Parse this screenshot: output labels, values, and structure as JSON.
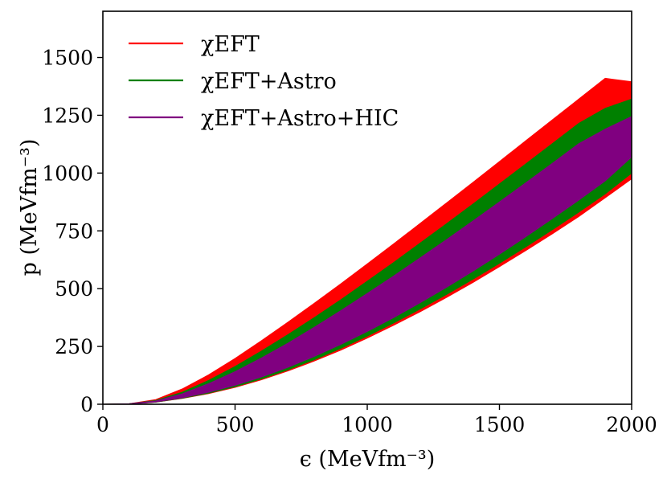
{
  "chart_data": {
    "type": "area",
    "title": "",
    "xlabel": "ϵ (MeVfm⁻³)",
    "ylabel": "p (MeVfm⁻³)",
    "xlim": [
      0,
      2000
    ],
    "ylim": [
      0,
      1700
    ],
    "xticks": [
      0,
      500,
      1000,
      1500,
      2000
    ],
    "yticks": [
      0,
      250,
      500,
      750,
      1000,
      1250,
      1500
    ],
    "xtick_labels": [
      "0",
      "500",
      "1000",
      "1500",
      "2000"
    ],
    "ytick_labels": [
      "0",
      "250",
      "500",
      "750",
      "1000",
      "1250",
      "1500"
    ],
    "grid": false,
    "legend_position": "top-left",
    "x": [
      0,
      100,
      200,
      300,
      400,
      500,
      600,
      700,
      800,
      900,
      1000,
      1100,
      1200,
      1300,
      1400,
      1500,
      1600,
      1700,
      1800,
      1900,
      2000
    ],
    "series": [
      {
        "name": "χEFT",
        "color": "#ff0000",
        "lower": [
          0,
          1,
          9,
          25,
          46,
          73,
          106,
          144,
          187,
          234,
          286,
          342,
          400,
          462,
          527,
          595,
          665,
          737,
          812,
          893,
          975
        ],
        "upper": [
          0,
          2,
          20,
          66,
          127,
          198,
          275,
          355,
          437,
          521,
          607,
          694,
          782,
          871,
          960,
          1050,
          1140,
          1230,
          1320,
          1410,
          1395
        ]
      },
      {
        "name": "χEFT+Astro",
        "color": "#008000",
        "lower": [
          0,
          1,
          9,
          26,
          48,
          76,
          110,
          149,
          193,
          242,
          295,
          352,
          412,
          475,
          541,
          610,
          681,
          755,
          831,
          910,
          1000
        ],
        "upper": [
          0,
          2,
          16,
          52,
          103,
          163,
          230,
          301,
          375,
          452,
          532,
          613,
          697,
          781,
          866,
          953,
          1040,
          1127,
          1215,
          1280,
          1320
        ]
      },
      {
        "name": "χEFT+Astro+HIC",
        "color": "#800080",
        "lower": [
          0,
          1,
          10,
          28,
          52,
          82,
          118,
          160,
          207,
          259,
          315,
          375,
          439,
          506,
          576,
          649,
          725,
          803,
          883,
          966,
          1070
        ],
        "upper": [
          0,
          2,
          14,
          45,
          89,
          141,
          200,
          264,
          333,
          405,
          479,
          555,
          633,
          712,
          793,
          875,
          958,
          1042,
          1127,
          1190,
          1245
        ]
      }
    ]
  }
}
